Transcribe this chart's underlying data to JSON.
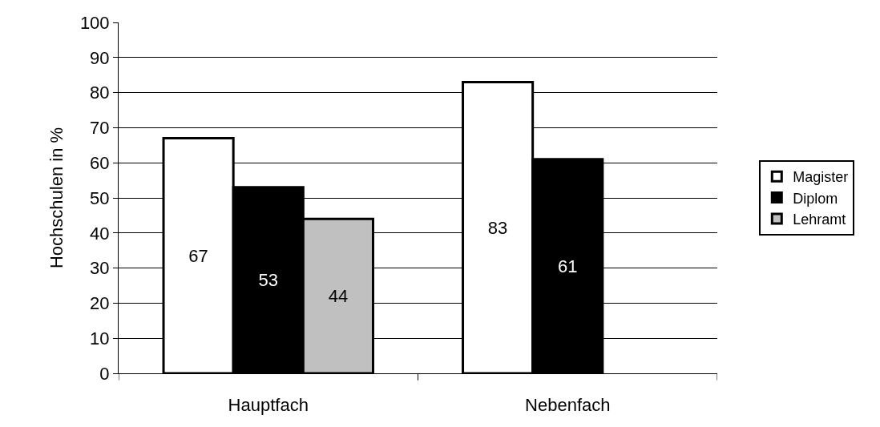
{
  "chart_data": {
    "type": "bar",
    "ylabel": "Hochschulen in %",
    "categories": [
      "Hauptfach",
      "Nebenfach"
    ],
    "series": [
      {
        "name": "Magister",
        "color": "#ffffff",
        "values": [
          67,
          83
        ]
      },
      {
        "name": "Diplom",
        "color": "#000000",
        "values": [
          53,
          61
        ]
      },
      {
        "name": "Lehramt",
        "color": "#c0c0c0",
        "values": [
          44,
          null
        ]
      }
    ],
    "ylim": [
      0,
      100
    ],
    "yticks": [
      0,
      10,
      20,
      30,
      40,
      50,
      60,
      70,
      80,
      90,
      100
    ],
    "grid": "y",
    "legend": "right",
    "data_labels": true
  }
}
